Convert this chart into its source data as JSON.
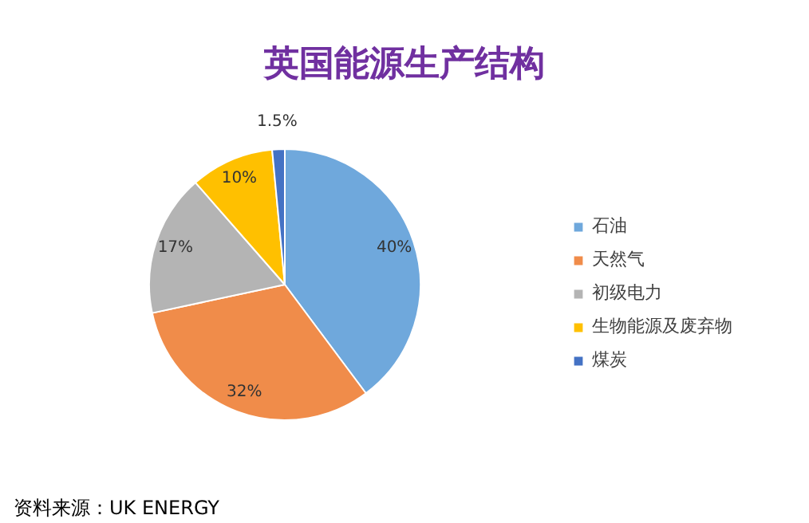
{
  "chart_data": {
    "type": "pie",
    "title": "英国能源生产结构",
    "categories": [
      "石油",
      "天然气",
      "初级电力",
      "生物能源及废弃物",
      "煤炭"
    ],
    "values": [
      40,
      32,
      17,
      10,
      1.5
    ],
    "colors": [
      "#6fa8dc",
      "#f08c4a",
      "#b4b4b4",
      "#ffc000",
      "#4472c4"
    ],
    "value_labels": [
      "40%",
      "32%",
      "17%",
      "10%",
      "1.5%"
    ],
    "legend": "right",
    "annotations": [
      "资料来源：UK ENERGY"
    ]
  }
}
